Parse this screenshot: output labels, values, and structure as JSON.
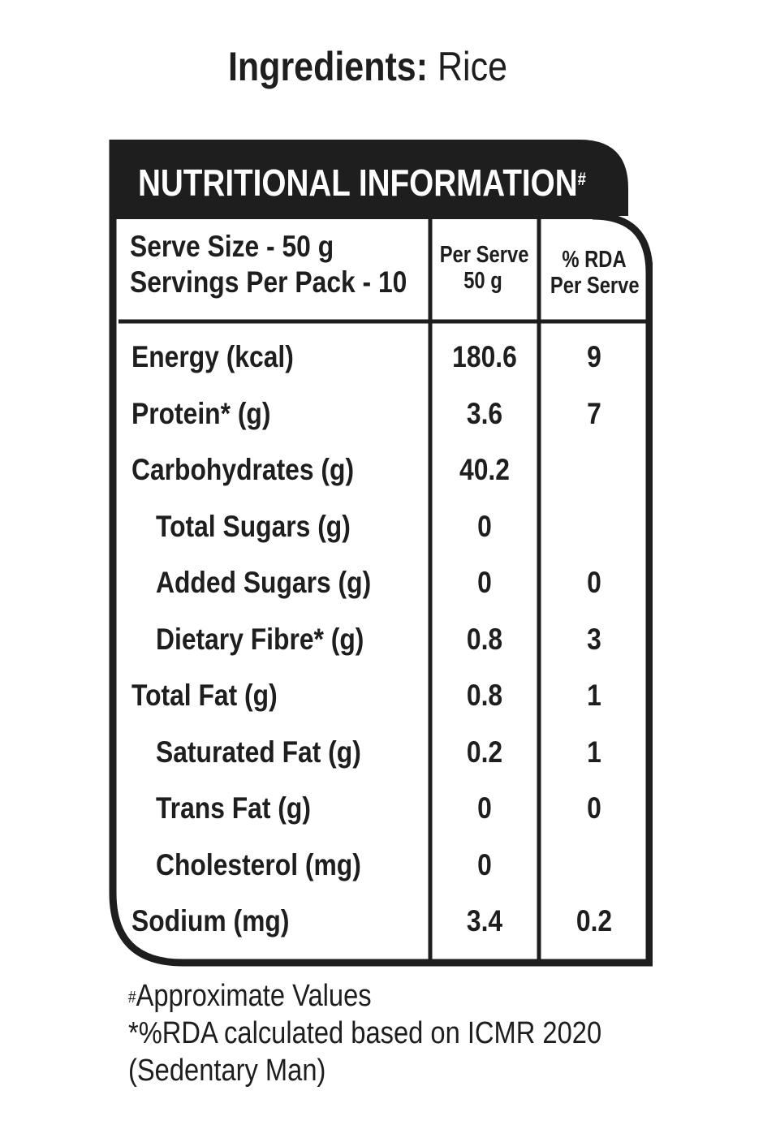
{
  "ingredients": {
    "label": "Ingredients:",
    "value": "Rice"
  },
  "panel": {
    "title": "NUTRITIONAL INFORMATION",
    "title_mark": "#",
    "serve_size": "Serve Size - 50 g",
    "servings_per_pack": "Servings Per Pack - 10",
    "col_per_serve": [
      "Per Serve",
      "50 g"
    ],
    "col_rda": [
      "% RDA",
      "Per Serve"
    ],
    "rows": [
      {
        "name": "Energy (kcal)",
        "per_serve": "180.6",
        "rda": "9",
        "indent": false
      },
      {
        "name": "Protein* (g)",
        "per_serve": "3.6",
        "rda": "7",
        "indent": false
      },
      {
        "name": "Carbohydrates (g)",
        "per_serve": "40.2",
        "rda": "",
        "indent": false
      },
      {
        "name": "Total Sugars (g)",
        "per_serve": "0",
        "rda": "",
        "indent": true
      },
      {
        "name": "Added Sugars (g)",
        "per_serve": "0",
        "rda": "0",
        "indent": true
      },
      {
        "name": "Dietary Fibre* (g)",
        "per_serve": "0.8",
        "rda": "3",
        "indent": true
      },
      {
        "name": "Total Fat (g)",
        "per_serve": "0.8",
        "rda": "1",
        "indent": false
      },
      {
        "name": "Saturated Fat (g)",
        "per_serve": "0.2",
        "rda": "1",
        "indent": true
      },
      {
        "name": "Trans Fat (g)",
        "per_serve": "0",
        "rda": "0",
        "indent": true
      },
      {
        "name": "Cholesterol (mg)",
        "per_serve": "0",
        "rda": "",
        "indent": true
      },
      {
        "name": "Sodium (mg)",
        "per_serve": "3.4",
        "rda": "0.2",
        "indent": false
      }
    ]
  },
  "footnotes": {
    "mark": "#",
    "line1": "Approximate Values",
    "line2": "*%RDA calculated based on ICMR 2020",
    "line3": "(Sedentary Man)"
  },
  "colors": {
    "ink": "#1e1e1e",
    "header_bg": "#1e1e1e",
    "paper": "#ffffff"
  }
}
